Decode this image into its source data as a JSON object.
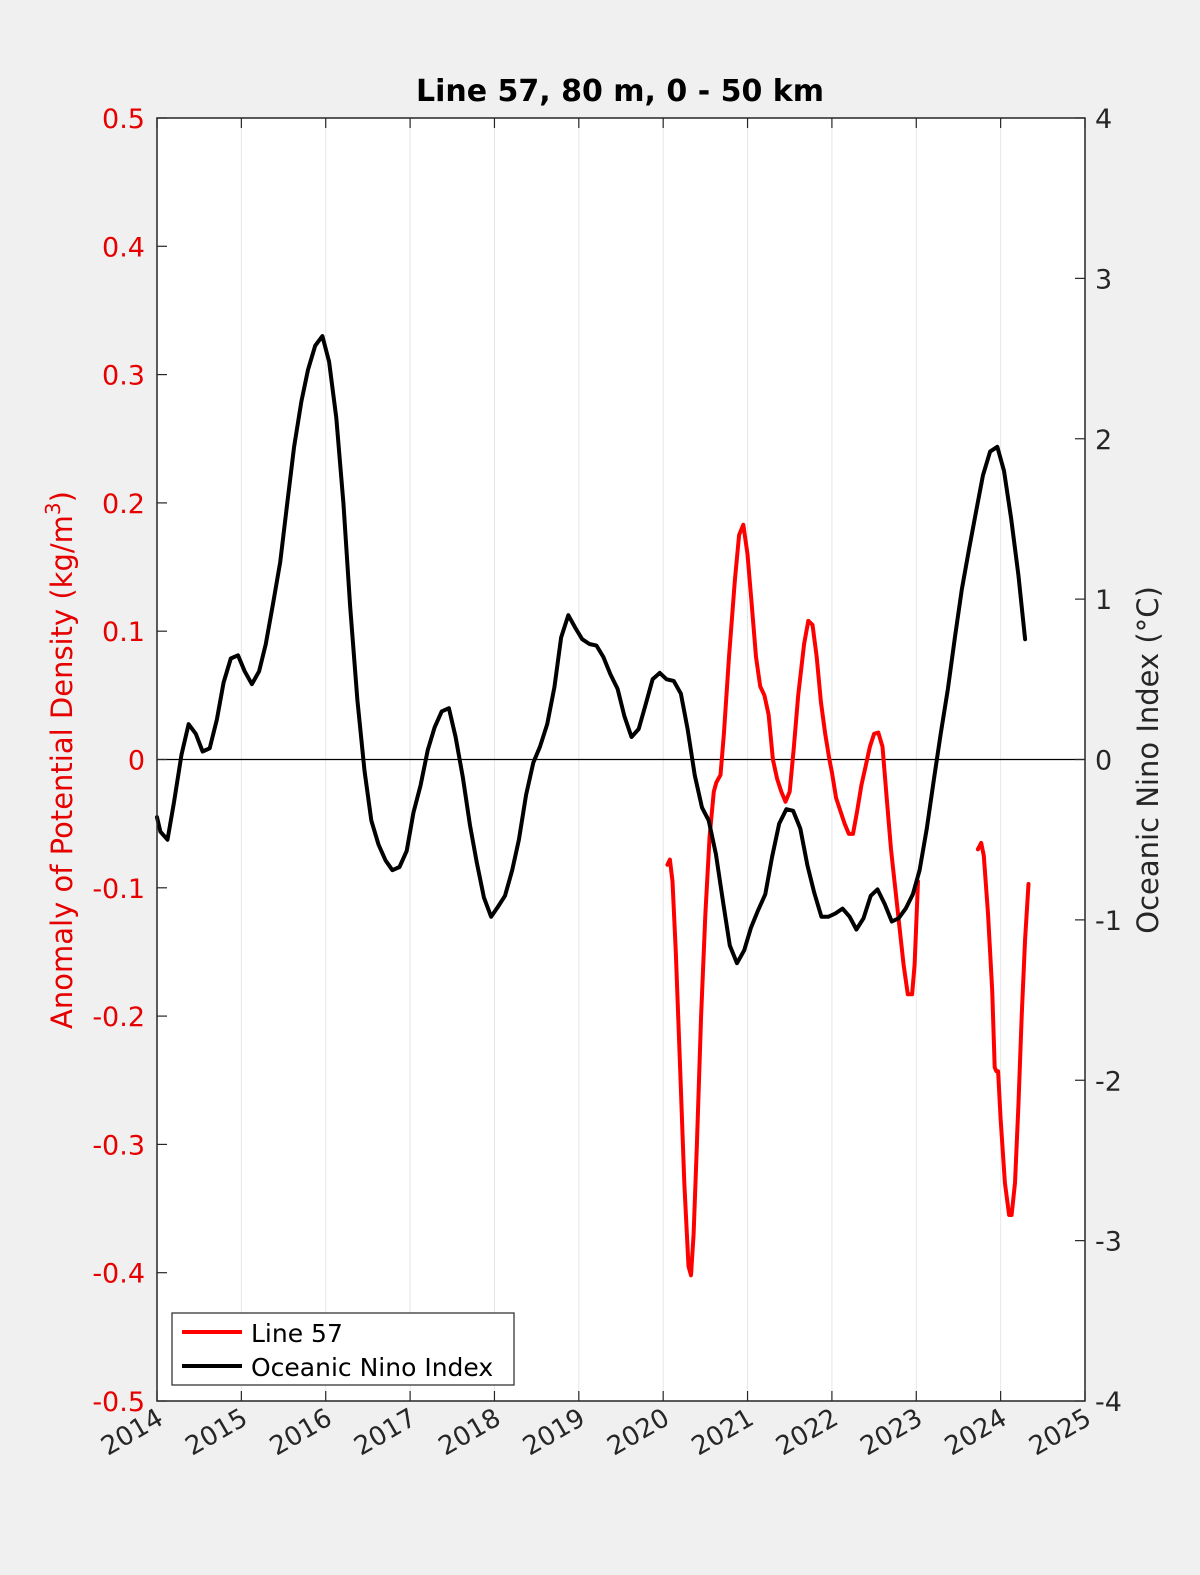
{
  "chart_data": {
    "type": "line",
    "title": "Line 57, 80 m, 0 - 50 km",
    "xlabel": "",
    "ylabel_left": "Anomaly of Potential Density (kg/m",
    "ylabel_left_sup": "3",
    "ylabel_left_close": ")",
    "ylabel_right": "Oceanic Nino Index (°C)",
    "xlim": [
      2014,
      2025
    ],
    "ylim_left": [
      -0.5,
      0.5
    ],
    "ylim_right": [
      -4,
      4
    ],
    "x_ticks": [
      "2014",
      "2015",
      "2016",
      "2017",
      "2018",
      "2019",
      "2020",
      "2021",
      "2022",
      "2023",
      "2024",
      "2025"
    ],
    "y_ticks_left": [
      "-0.5",
      "-0.4",
      "-0.3",
      "-0.2",
      "-0.1",
      "0",
      "0.1",
      "0.2",
      "0.3",
      "0.4",
      "0.5"
    ],
    "y_ticks_right": [
      "-4",
      "-3",
      "-2",
      "-1",
      "0",
      "1",
      "2",
      "3",
      "4"
    ],
    "grid": "vertical",
    "legend_placement": "bottom-left",
    "colors": {
      "line57": "#ff0000",
      "oni": "#000000",
      "left_axis": "#e60000",
      "right_axis": "#262626"
    },
    "series": [
      {
        "name": "Line 57",
        "axis": "left",
        "segments": [
          [
            [
              2020.05,
              -0.082
            ],
            [
              2020.08,
              -0.078
            ],
            [
              2020.11,
              -0.095
            ],
            [
              2020.15,
              -0.15
            ],
            [
              2020.2,
              -0.24
            ],
            [
              2020.25,
              -0.33
            ],
            [
              2020.3,
              -0.395
            ],
            [
              2020.33,
              -0.402
            ],
            [
              2020.36,
              -0.37
            ],
            [
              2020.4,
              -0.3
            ],
            [
              2020.45,
              -0.2
            ],
            [
              2020.5,
              -0.12
            ],
            [
              2020.55,
              -0.06
            ],
            [
              2020.6,
              -0.025
            ],
            [
              2020.63,
              -0.018
            ],
            [
              2020.68,
              -0.012
            ],
            [
              2020.72,
              0.02
            ],
            [
              2020.78,
              0.08
            ],
            [
              2020.85,
              0.14
            ],
            [
              2020.9,
              0.175
            ],
            [
              2020.95,
              0.183
            ],
            [
              2021.0,
              0.16
            ],
            [
              2021.05,
              0.12
            ],
            [
              2021.1,
              0.08
            ],
            [
              2021.15,
              0.057
            ],
            [
              2021.2,
              0.05
            ],
            [
              2021.25,
              0.035
            ],
            [
              2021.3,
              0.0
            ],
            [
              2021.35,
              -0.015
            ],
            [
              2021.4,
              -0.025
            ],
            [
              2021.45,
              -0.033
            ],
            [
              2021.5,
              -0.025
            ],
            [
              2021.55,
              0.01
            ],
            [
              2021.6,
              0.05
            ],
            [
              2021.67,
              0.09
            ],
            [
              2021.72,
              0.108
            ],
            [
              2021.77,
              0.105
            ],
            [
              2021.82,
              0.08
            ],
            [
              2021.87,
              0.045
            ],
            [
              2021.92,
              0.02
            ],
            [
              2021.97,
              0.0
            ],
            [
              2022.0,
              -0.01
            ],
            [
              2022.05,
              -0.03
            ],
            [
              2022.1,
              -0.04
            ],
            [
              2022.15,
              -0.05
            ],
            [
              2022.2,
              -0.058
            ],
            [
              2022.25,
              -0.058
            ],
            [
              2022.3,
              -0.04
            ],
            [
              2022.35,
              -0.02
            ],
            [
              2022.4,
              -0.005
            ],
            [
              2022.45,
              0.01
            ],
            [
              2022.5,
              0.02
            ],
            [
              2022.55,
              0.021
            ],
            [
              2022.6,
              0.01
            ],
            [
              2022.65,
              -0.03
            ],
            [
              2022.7,
              -0.07
            ],
            [
              2022.75,
              -0.1
            ],
            [
              2022.8,
              -0.13
            ],
            [
              2022.85,
              -0.16
            ],
            [
              2022.9,
              -0.183
            ],
            [
              2022.95,
              -0.183
            ],
            [
              2022.98,
              -0.16
            ],
            [
              2023.02,
              -0.095
            ]
          ],
          [
            [
              2023.73,
              -0.07
            ],
            [
              2023.77,
              -0.065
            ],
            [
              2023.8,
              -0.075
            ],
            [
              2023.85,
              -0.12
            ],
            [
              2023.9,
              -0.18
            ],
            [
              2023.93,
              -0.24
            ],
            [
              2023.95,
              -0.243
            ],
            [
              2023.97,
              -0.243
            ],
            [
              2024.0,
              -0.28
            ],
            [
              2024.05,
              -0.33
            ],
            [
              2024.1,
              -0.355
            ],
            [
              2024.13,
              -0.355
            ],
            [
              2024.17,
              -0.33
            ],
            [
              2024.21,
              -0.27
            ],
            [
              2024.25,
              -0.2
            ],
            [
              2024.29,
              -0.14
            ],
            [
              2024.33,
              -0.097
            ]
          ]
        ]
      },
      {
        "name": "Oceanic Nino Index",
        "axis": "right",
        "segments": [
          [
            [
              2014.0,
              -0.36
            ],
            [
              2014.04,
              -0.45
            ],
            [
              2014.125,
              -0.5
            ],
            [
              2014.2,
              -0.27
            ],
            [
              2014.29,
              0.03
            ],
            [
              2014.375,
              0.22
            ],
            [
              2014.46,
              0.16
            ],
            [
              2014.54,
              0.05
            ],
            [
              2014.625,
              0.07
            ],
            [
              2014.71,
              0.25
            ],
            [
              2014.79,
              0.48
            ],
            [
              2014.875,
              0.63
            ],
            [
              2014.96,
              0.65
            ],
            [
              2015.04,
              0.55
            ],
            [
              2015.125,
              0.47
            ],
            [
              2015.21,
              0.55
            ],
            [
              2015.29,
              0.72
            ],
            [
              2015.375,
              0.97
            ],
            [
              2015.46,
              1.23
            ],
            [
              2015.54,
              1.58
            ],
            [
              2015.625,
              1.95
            ],
            [
              2015.71,
              2.23
            ],
            [
              2015.79,
              2.43
            ],
            [
              2015.875,
              2.58
            ],
            [
              2015.96,
              2.64
            ],
            [
              2016.04,
              2.48
            ],
            [
              2016.125,
              2.13
            ],
            [
              2016.21,
              1.6
            ],
            [
              2016.29,
              0.95
            ],
            [
              2016.375,
              0.37
            ],
            [
              2016.46,
              -0.07
            ],
            [
              2016.54,
              -0.38
            ],
            [
              2016.625,
              -0.53
            ],
            [
              2016.71,
              -0.63
            ],
            [
              2016.79,
              -0.69
            ],
            [
              2016.875,
              -0.67
            ],
            [
              2016.96,
              -0.57
            ],
            [
              2017.04,
              -0.33
            ],
            [
              2017.125,
              -0.16
            ],
            [
              2017.21,
              0.06
            ],
            [
              2017.29,
              0.2
            ],
            [
              2017.375,
              0.3
            ],
            [
              2017.46,
              0.32
            ],
            [
              2017.54,
              0.14
            ],
            [
              2017.625,
              -0.11
            ],
            [
              2017.71,
              -0.41
            ],
            [
              2017.79,
              -0.64
            ],
            [
              2017.875,
              -0.86
            ],
            [
              2017.96,
              -0.98
            ],
            [
              2018.04,
              -0.92
            ],
            [
              2018.125,
              -0.85
            ],
            [
              2018.21,
              -0.69
            ],
            [
              2018.29,
              -0.5
            ],
            [
              2018.375,
              -0.22
            ],
            [
              2018.46,
              -0.02
            ],
            [
              2018.54,
              0.08
            ],
            [
              2018.625,
              0.22
            ],
            [
              2018.71,
              0.45
            ],
            [
              2018.79,
              0.76
            ],
            [
              2018.875,
              0.9
            ],
            [
              2018.96,
              0.82
            ],
            [
              2019.04,
              0.75
            ],
            [
              2019.125,
              0.72
            ],
            [
              2019.21,
              0.71
            ],
            [
              2019.29,
              0.64
            ],
            [
              2019.375,
              0.53
            ],
            [
              2019.46,
              0.44
            ],
            [
              2019.54,
              0.27
            ],
            [
              2019.625,
              0.14
            ],
            [
              2019.71,
              0.19
            ],
            [
              2019.79,
              0.34
            ],
            [
              2019.875,
              0.5
            ],
            [
              2019.96,
              0.54
            ],
            [
              2020.04,
              0.5
            ],
            [
              2020.125,
              0.49
            ],
            [
              2020.21,
              0.41
            ],
            [
              2020.29,
              0.19
            ],
            [
              2020.375,
              -0.1
            ],
            [
              2020.46,
              -0.3
            ],
            [
              2020.54,
              -0.38
            ],
            [
              2020.625,
              -0.59
            ],
            [
              2020.71,
              -0.89
            ],
            [
              2020.79,
              -1.16
            ],
            [
              2020.875,
              -1.27
            ],
            [
              2020.96,
              -1.19
            ],
            [
              2021.04,
              -1.05
            ],
            [
              2021.125,
              -0.94
            ],
            [
              2021.21,
              -0.84
            ],
            [
              2021.29,
              -0.61
            ],
            [
              2021.375,
              -0.4
            ],
            [
              2021.46,
              -0.31
            ],
            [
              2021.54,
              -0.32
            ],
            [
              2021.625,
              -0.43
            ],
            [
              2021.71,
              -0.66
            ],
            [
              2021.79,
              -0.83
            ],
            [
              2021.875,
              -0.98
            ],
            [
              2021.96,
              -0.98
            ],
            [
              2022.04,
              -0.96
            ],
            [
              2022.125,
              -0.93
            ],
            [
              2022.21,
              -0.98
            ],
            [
              2022.29,
              -1.06
            ],
            [
              2022.375,
              -0.99
            ],
            [
              2022.46,
              -0.85
            ],
            [
              2022.54,
              -0.81
            ],
            [
              2022.625,
              -0.9
            ],
            [
              2022.71,
              -1.01
            ],
            [
              2022.79,
              -0.99
            ],
            [
              2022.875,
              -0.93
            ],
            [
              2022.96,
              -0.84
            ],
            [
              2023.04,
              -0.69
            ],
            [
              2023.125,
              -0.43
            ],
            [
              2023.21,
              -0.12
            ],
            [
              2023.29,
              0.16
            ],
            [
              2023.375,
              0.44
            ],
            [
              2023.46,
              0.77
            ],
            [
              2023.54,
              1.06
            ],
            [
              2023.625,
              1.31
            ],
            [
              2023.71,
              1.55
            ],
            [
              2023.79,
              1.77
            ],
            [
              2023.875,
              1.92
            ],
            [
              2023.96,
              1.95
            ],
            [
              2024.04,
              1.8
            ],
            [
              2024.125,
              1.5
            ],
            [
              2024.21,
              1.15
            ],
            [
              2024.29,
              0.75
            ]
          ]
        ]
      }
    ]
  },
  "legend": [
    {
      "label": "Line 57",
      "color": "#ff0000"
    },
    {
      "label": "Oceanic Nino Index",
      "color": "#000000"
    }
  ]
}
